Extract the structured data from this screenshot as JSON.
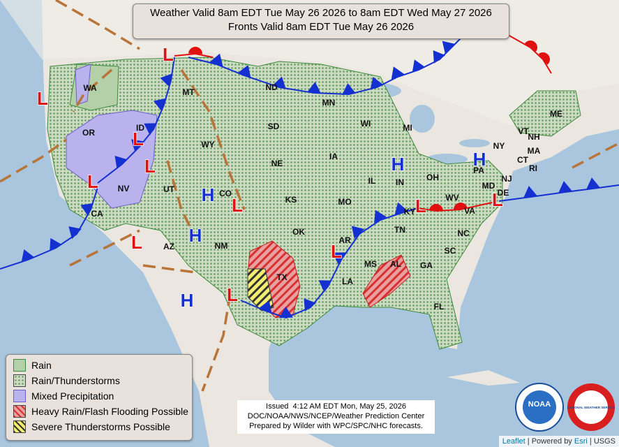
{
  "header": {
    "line1": "Weather Valid 8am EDT Tue May 26 2026 to 8am EDT Wed May 27 2026",
    "line2": "Fronts Valid 8am EDT Tue May 26 2026"
  },
  "states": [
    "WA",
    "OR",
    "CA",
    "NV",
    "ID",
    "MT",
    "WY",
    "UT",
    "AZ",
    "CO",
    "NM",
    "ND",
    "SD",
    "NE",
    "KS",
    "OK",
    "TX",
    "MN",
    "IA",
    "MO",
    "AR",
    "LA",
    "WI",
    "IL",
    "MI",
    "IN",
    "OH",
    "KY",
    "TN",
    "MS",
    "AL",
    "GA",
    "FL",
    "SC",
    "NC",
    "VA",
    "WV",
    "PA",
    "NY",
    "MD",
    "DE",
    "NJ",
    "CT",
    "RI",
    "MA",
    "NH",
    "VT",
    "ME"
  ],
  "pressure": {
    "high": "H",
    "low": "L"
  },
  "legend": [
    "Rain",
    "Rain/Thunderstorms",
    "Mixed Precipitation",
    "Heavy Rain/Flash Flooding Possible",
    "Severe Thunderstorms Possible"
  ],
  "issued": {
    "line1": "Issued  4:12 AM EDT Mon, May 25, 2026",
    "line2": "DOC/NOAA/NWS/NCEP/Weather Prediction Center",
    "line3": "Prepared by Wilder with WPC/SPC/NHC forecasts."
  },
  "logos": {
    "noaa": "NOAA",
    "nws": "NATIONAL WEATHER SERVICE"
  },
  "attribution": {
    "leaflet": "Leaflet",
    "powered": "Powered by",
    "esri": "Esri",
    "separator": "|",
    "usgs": "USGS"
  }
}
